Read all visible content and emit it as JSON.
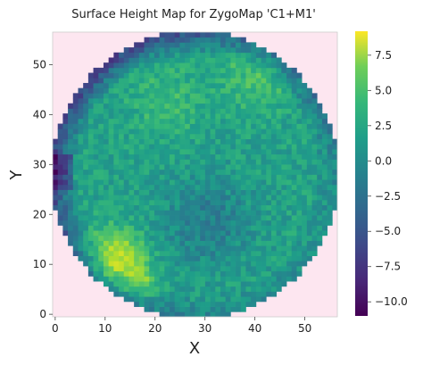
{
  "chart_data": {
    "type": "heatmap",
    "title": "Surface Height Map for ZygoMap 'C1+M1'",
    "xlabel": "X",
    "ylabel": "Y",
    "x_range": [
      0,
      56
    ],
    "y_range": [
      0,
      56
    ],
    "x_ticks": [
      0,
      10,
      20,
      30,
      40,
      50
    ],
    "y_ticks": [
      0,
      10,
      20,
      30,
      40,
      50
    ],
    "grid": 56,
    "aperture": "circular",
    "background_color": "#fde6f0",
    "colormap": "viridis",
    "colorbar": {
      "range": [
        -11,
        9.2
      ],
      "ticks": [
        -10,
        -7.5,
        -5,
        -2.5,
        0,
        2.5,
        5,
        7.5
      ],
      "tick_labels": [
        "−10.0",
        "−7.5",
        "−5.0",
        "−2.5",
        "0.0",
        "2.5",
        "5.0",
        "7.5"
      ]
    }
  }
}
